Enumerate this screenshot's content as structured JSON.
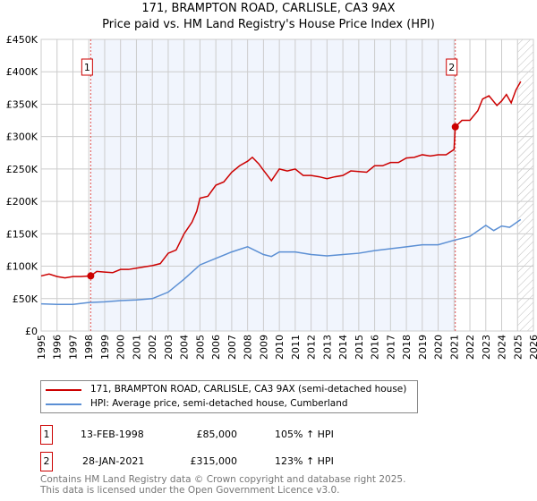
{
  "chart_data": {
    "type": "line",
    "title": "171, BRAMPTON ROAD, CARLISLE, CA3 9AX",
    "subtitle": "Price paid vs. HM Land Registry's House Price Index (HPI)",
    "xlim": [
      1995,
      2026
    ],
    "ylim": [
      0,
      450000
    ],
    "x_ticks": [
      "1995",
      "1996",
      "1997",
      "1998",
      "1999",
      "2000",
      "2001",
      "2002",
      "2003",
      "2004",
      "2005",
      "2006",
      "2007",
      "2008",
      "2009",
      "2010",
      "2011",
      "2012",
      "2013",
      "2014",
      "2015",
      "2016",
      "2017",
      "2018",
      "2019",
      "2020",
      "2021",
      "2022",
      "2023",
      "2024",
      "2025",
      "2026"
    ],
    "y_ticks": [
      {
        "v": 0,
        "l": "£0"
      },
      {
        "v": 50000,
        "l": "£50K"
      },
      {
        "v": 100000,
        "l": "£100K"
      },
      {
        "v": 150000,
        "l": "£150K"
      },
      {
        "v": 200000,
        "l": "£200K"
      },
      {
        "v": 250000,
        "l": "£250K"
      },
      {
        "v": 300000,
        "l": "£300K"
      },
      {
        "v": 350000,
        "l": "£350K"
      },
      {
        "v": 400000,
        "l": "£400K"
      },
      {
        "v": 450000,
        "l": "£450K"
      }
    ],
    "series": [
      {
        "name": "171, BRAMPTON ROAD, CARLISLE, CA3 9AX (semi-detached house)",
        "color": "#cc0000",
        "x": [
          1995,
          1995.5,
          1996,
          1996.5,
          1997,
          1997.5,
          1998.12,
          1998.5,
          1999,
          1999.5,
          2000,
          2000.5,
          2001,
          2001.5,
          2002,
          2002.5,
          2003,
          2003.5,
          2004,
          2004.5,
          2004.8,
          2005,
          2005.5,
          2006,
          2006.5,
          2007,
          2007.5,
          2008,
          2008.3,
          2008.7,
          2009,
          2009.5,
          2010,
          2010.5,
          2011,
          2011.5,
          2012,
          2012.5,
          2013,
          2013.5,
          2014,
          2014.5,
          2015,
          2015.5,
          2016,
          2016.5,
          2017,
          2017.5,
          2018,
          2018.5,
          2019,
          2019.5,
          2020,
          2020.5,
          2021,
          2021.08,
          2021.5,
          2022,
          2022.5,
          2022.8,
          2023.2,
          2023.7,
          2024,
          2024.3,
          2024.6,
          2024.9,
          2025.2
        ],
        "y": [
          85000,
          88000,
          84000,
          82000,
          84000,
          84000,
          85000,
          92000,
          91000,
          90000,
          95000,
          95000,
          97000,
          99000,
          101000,
          104000,
          120000,
          125000,
          150000,
          168000,
          185000,
          205000,
          208000,
          225000,
          230000,
          245000,
          255000,
          262000,
          268000,
          258000,
          248000,
          232000,
          250000,
          247000,
          250000,
          240000,
          240000,
          238000,
          235000,
          238000,
          240000,
          247000,
          246000,
          245000,
          255000,
          255000,
          260000,
          260000,
          267000,
          268000,
          272000,
          270000,
          272000,
          272000,
          280000,
          315000,
          325000,
          325000,
          340000,
          358000,
          363000,
          348000,
          355000,
          365000,
          352000,
          372000,
          385000
        ]
      },
      {
        "name": "HPI: Average price, semi-detached house, Cumberland",
        "color": "#5b8fd4",
        "x": [
          1995,
          1996,
          1997,
          1998,
          1999,
          2000,
          2001,
          2002,
          2003,
          2004,
          2005,
          2006,
          2007,
          2008,
          2009,
          2009.5,
          2010,
          2011,
          2012,
          2013,
          2014,
          2015,
          2016,
          2017,
          2018,
          2019,
          2020,
          2021,
          2022,
          2023,
          2023.5,
          2024,
          2024.5,
          2025.2
        ],
        "y": [
          42000,
          41000,
          41000,
          44000,
          45000,
          47000,
          48000,
          50000,
          60000,
          80000,
          102000,
          112000,
          122000,
          130000,
          118000,
          115000,
          122000,
          122000,
          118000,
          116000,
          118000,
          120000,
          124000,
          127000,
          130000,
          133000,
          133000,
          140000,
          146000,
          163000,
          155000,
          162000,
          160000,
          172000
        ]
      }
    ],
    "sales": [
      {
        "label": "1",
        "x": 1998.12,
        "y": 85000
      },
      {
        "label": "2",
        "x": 2021.08,
        "y": 315000
      }
    ],
    "shaded_range": [
      1998.12,
      2021.08
    ],
    "hatched_from": 2025.0,
    "legend_position": "bottom"
  },
  "table": [
    {
      "num": "1",
      "date": "13-FEB-1998",
      "price": "£85,000",
      "hpi": "105% ↑ HPI"
    },
    {
      "num": "2",
      "date": "28-JAN-2021",
      "price": "£315,000",
      "hpi": "123% ↑ HPI"
    }
  ],
  "footer": {
    "line1": "Contains HM Land Registry data © Crown copyright and database right 2025.",
    "line2": "This data is licensed under the Open Government Licence v3.0."
  }
}
